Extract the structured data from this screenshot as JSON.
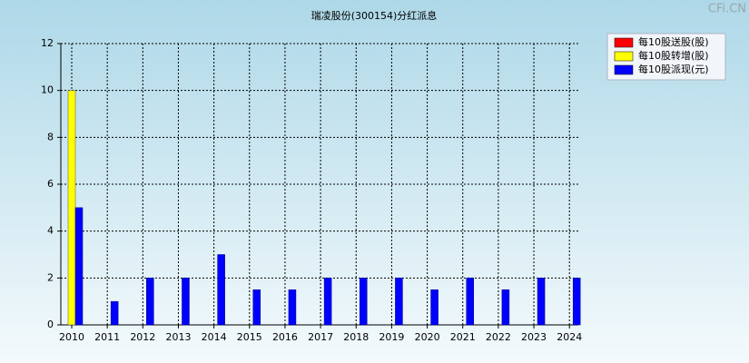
{
  "chart_data": {
    "type": "bar",
    "title": "瑞凌股份(300154)分红派息",
    "watermark": "CFi.CN",
    "categories": [
      "2010",
      "2011",
      "2012",
      "2013",
      "2014",
      "2015",
      "2016",
      "2017",
      "2018",
      "2019",
      "2020",
      "2021",
      "2022",
      "2023",
      "2024"
    ],
    "series": [
      {
        "name": "每10股送股(股)",
        "color": "#ff0000",
        "values": [
          0,
          0,
          0,
          0,
          0,
          0,
          0,
          0,
          0,
          0,
          0,
          0,
          0,
          0,
          0
        ]
      },
      {
        "name": "每10股转增(股)",
        "color": "#ffff00",
        "values": [
          10,
          0,
          0,
          0,
          0,
          0,
          0,
          0,
          0,
          0,
          0,
          0,
          0,
          0,
          0
        ]
      },
      {
        "name": "每10股派现(元)",
        "color": "#0000ff",
        "values": [
          5,
          1,
          2,
          2,
          3,
          1.5,
          1.5,
          2,
          2,
          2,
          1.5,
          2,
          1.5,
          2,
          2
        ]
      }
    ],
    "ylim": [
      0,
      12
    ],
    "yticks": [
      0,
      2,
      4,
      6,
      8,
      10,
      12
    ],
    "grid": true,
    "legend": "top-right"
  }
}
